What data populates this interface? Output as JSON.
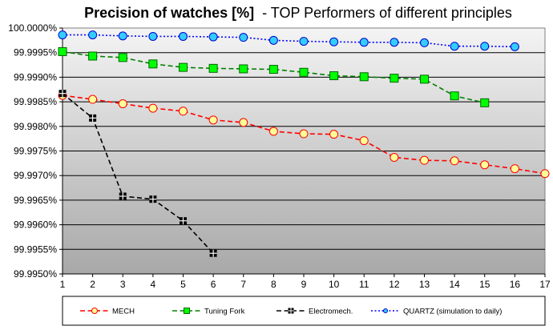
{
  "chart_data": {
    "type": "line",
    "title_bold": "Precision of watches [%]",
    "title_rest": "- TOP Performers of different principles",
    "x": [
      1,
      2,
      3,
      4,
      5,
      6,
      7,
      8,
      9,
      10,
      11,
      12,
      13,
      14,
      15,
      16,
      17
    ],
    "x_tick_labels": [
      "1",
      "2",
      "3",
      "4",
      "5",
      "6",
      "7",
      "8",
      "9",
      "10",
      "11",
      "12",
      "13",
      "14",
      "15",
      "16",
      "17"
    ],
    "ylim": [
      99.995,
      100.0
    ],
    "y_ticks": [
      100.0,
      99.9995,
      99.999,
      99.9985,
      99.998,
      99.9975,
      99.997,
      99.9965,
      99.996,
      99.9955,
      99.995
    ],
    "y_tick_labels": [
      "100.0000%",
      "99.9995%",
      "99.9990%",
      "99.9985%",
      "99.9980%",
      "99.9975%",
      "99.9970%",
      "99.9965%",
      "99.9960%",
      "99.9955%",
      "99.9950%"
    ],
    "grid": true,
    "legend_position": "bottom",
    "series": [
      {
        "name": "MECH",
        "marker": "circle",
        "line_style": "dashed",
        "line_color": "#ff0000",
        "marker_fill": "#ffff99",
        "marker_stroke": "#ff0000",
        "x": [
          1,
          2,
          3,
          4,
          5,
          6,
          7,
          8,
          9,
          10,
          11,
          12,
          13,
          14,
          15,
          16,
          17
        ],
        "values": [
          99.99863,
          99.99855,
          99.99846,
          99.99837,
          99.99831,
          99.99813,
          99.99808,
          99.9979,
          99.99785,
          99.99784,
          99.99771,
          99.99737,
          99.99731,
          99.9973,
          99.99722,
          99.99714,
          99.99704
        ]
      },
      {
        "name": "Tuning Fork",
        "marker": "square",
        "line_style": "dashed",
        "line_color": "#008000",
        "marker_fill": "#00ff00",
        "marker_stroke": "#006600",
        "x": [
          1,
          2,
          3,
          4,
          5,
          6,
          7,
          8,
          9,
          10,
          11,
          12,
          13,
          14,
          15
        ],
        "values": [
          99.99952,
          99.99943,
          99.9994,
          99.99927,
          99.9992,
          99.99918,
          99.99917,
          99.99916,
          99.9991,
          99.99903,
          99.99901,
          99.99898,
          99.99896,
          99.99862,
          99.99848
        ]
      },
      {
        "name": "Electromech.",
        "marker": "square-cross",
        "line_style": "dashed",
        "line_color": "#000000",
        "marker_fill": "#000000",
        "marker_stroke": "#000000",
        "x": [
          1,
          2,
          3,
          4,
          5,
          6
        ],
        "values": [
          99.99867,
          99.99817,
          99.99658,
          99.99652,
          99.99608,
          99.99542
        ]
      },
      {
        "name": "QUARTZ (simulation to daily)",
        "marker": "circle",
        "line_style": "dotted",
        "line_color": "#0000ff",
        "marker_fill": "#33ccff",
        "marker_stroke": "#0000cc",
        "x": [
          1,
          2,
          3,
          4,
          5,
          6,
          7,
          8,
          9,
          10,
          11,
          12,
          13,
          14,
          15,
          16
        ],
        "values": [
          99.99986,
          99.99986,
          99.99984,
          99.99983,
          99.99983,
          99.99982,
          99.99981,
          99.99975,
          99.99973,
          99.99972,
          99.99971,
          99.99971,
          99.9997,
          99.99963,
          99.99963,
          99.99962
        ]
      }
    ]
  }
}
